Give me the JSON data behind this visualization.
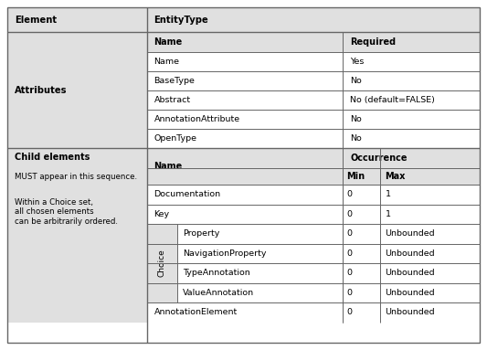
{
  "bg_light": "#e0e0e0",
  "bg_white": "#ffffff",
  "border_color": "#666666",
  "attr_rows": [
    {
      "name": "Name",
      "required": "Yes"
    },
    {
      "name": "BaseType",
      "required": "No"
    },
    {
      "name": "Abstract",
      "required": "No (default=FALSE)"
    },
    {
      "name": "AnnotationAttribute",
      "required": "No"
    },
    {
      "name": "OpenType",
      "required": "No"
    }
  ],
  "child_rows": [
    {
      "name": "Documentation",
      "min": "0",
      "max": "1",
      "choice": false
    },
    {
      "name": "Key",
      "min": "0",
      "max": "1",
      "choice": false
    },
    {
      "name": "Property",
      "min": "0",
      "max": "Unbounded",
      "choice": true
    },
    {
      "name": "NavigationProperty",
      "min": "0",
      "max": "Unbounded",
      "choice": true
    },
    {
      "name": "TypeAnnotation",
      "min": "0",
      "max": "Unbounded",
      "choice": true
    },
    {
      "name": "ValueAnnotation",
      "min": "0",
      "max": "Unbounded",
      "choice": true
    },
    {
      "name": "AnnotationElement",
      "min": "0",
      "max": "Unbounded",
      "choice": false
    }
  ],
  "fig_width": 5.33,
  "fig_height": 3.83,
  "dpi": 100
}
